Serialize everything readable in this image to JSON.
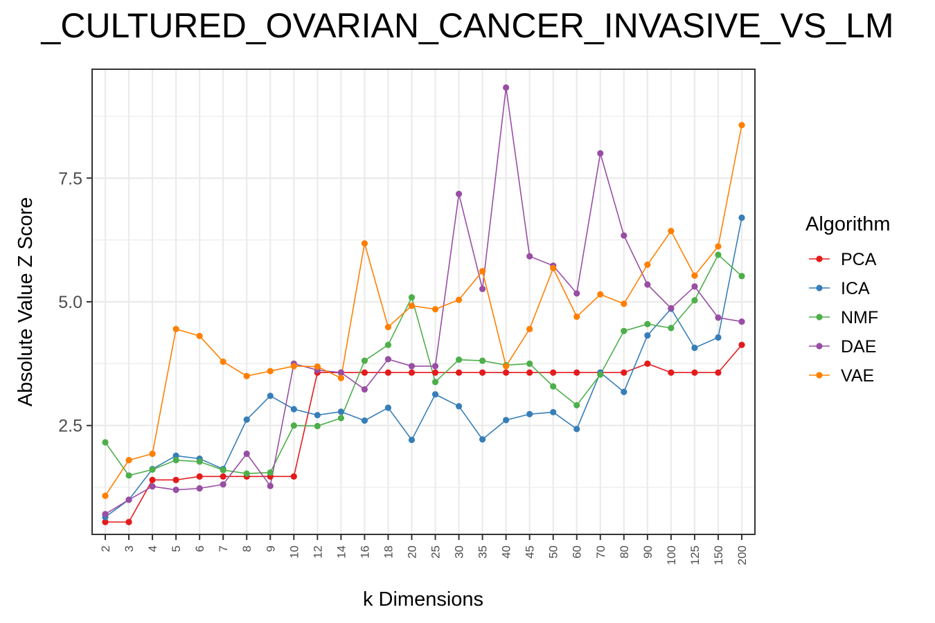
{
  "chart_data": {
    "type": "line",
    "title": "_CULTURED_OVARIAN_CANCER_INVASIVE_VS_LM",
    "xlabel": "k Dimensions",
    "ylabel": "Absolute Value Z Score",
    "categories": [
      "2",
      "3",
      "4",
      "5",
      "6",
      "7",
      "8",
      "9",
      "10",
      "12",
      "14",
      "16",
      "18",
      "20",
      "25",
      "30",
      "35",
      "40",
      "45",
      "50",
      "60",
      "70",
      "80",
      "90",
      "100",
      "125",
      "150",
      "200"
    ],
    "ylim": [
      0.3,
      9.7
    ],
    "yticks": [
      2.5,
      5.0,
      7.5
    ],
    "ytick_labels": [
      "2.5",
      "5.0",
      "7.5"
    ],
    "grid": true,
    "legend_title": "Algorithm",
    "legend_position": "right",
    "series": [
      {
        "name": "PCA",
        "color": "#e41a1c",
        "values": [
          0.55,
          0.55,
          1.4,
          1.4,
          1.47,
          1.47,
          1.47,
          1.47,
          1.47,
          3.57,
          3.57,
          3.57,
          3.57,
          3.57,
          3.57,
          3.57,
          3.57,
          3.57,
          3.57,
          3.57,
          3.57,
          3.57,
          3.57,
          3.75,
          3.57,
          3.57,
          3.57,
          4.13
        ]
      },
      {
        "name": "ICA",
        "color": "#377eb8",
        "values": [
          0.65,
          1.0,
          1.62,
          1.89,
          1.83,
          1.62,
          2.62,
          3.1,
          2.83,
          2.71,
          2.78,
          2.6,
          2.86,
          2.21,
          3.13,
          2.89,
          2.22,
          2.61,
          2.73,
          2.77,
          2.43,
          3.57,
          3.18,
          4.32,
          4.86,
          4.07,
          4.28,
          6.7
        ]
      },
      {
        "name": "NMF",
        "color": "#4daf4a",
        "values": [
          2.16,
          1.49,
          1.61,
          1.8,
          1.77,
          1.6,
          1.53,
          1.55,
          2.5,
          2.49,
          2.65,
          3.81,
          4.13,
          5.09,
          3.38,
          3.83,
          3.81,
          3.72,
          3.75,
          3.29,
          2.91,
          3.53,
          4.41,
          4.55,
          4.47,
          5.03,
          5.95,
          5.52
        ]
      },
      {
        "name": "DAE",
        "color": "#984ea3",
        "values": [
          0.71,
          1.0,
          1.27,
          1.2,
          1.23,
          1.31,
          1.93,
          1.28,
          3.75,
          3.62,
          3.57,
          3.23,
          3.84,
          3.7,
          3.7,
          7.18,
          5.26,
          9.33,
          5.92,
          5.73,
          5.17,
          8.0,
          6.34,
          5.35,
          4.87,
          5.31,
          4.68,
          4.6
        ]
      },
      {
        "name": "VAE",
        "color": "#ff7f00",
        "values": [
          1.08,
          1.8,
          1.93,
          4.45,
          4.31,
          3.79,
          3.5,
          3.6,
          3.7,
          3.69,
          3.46,
          6.18,
          4.49,
          4.92,
          4.85,
          5.04,
          5.62,
          3.7,
          4.45,
          5.68,
          4.7,
          5.15,
          4.96,
          5.75,
          6.43,
          5.53,
          6.12,
          8.57
        ]
      }
    ]
  }
}
